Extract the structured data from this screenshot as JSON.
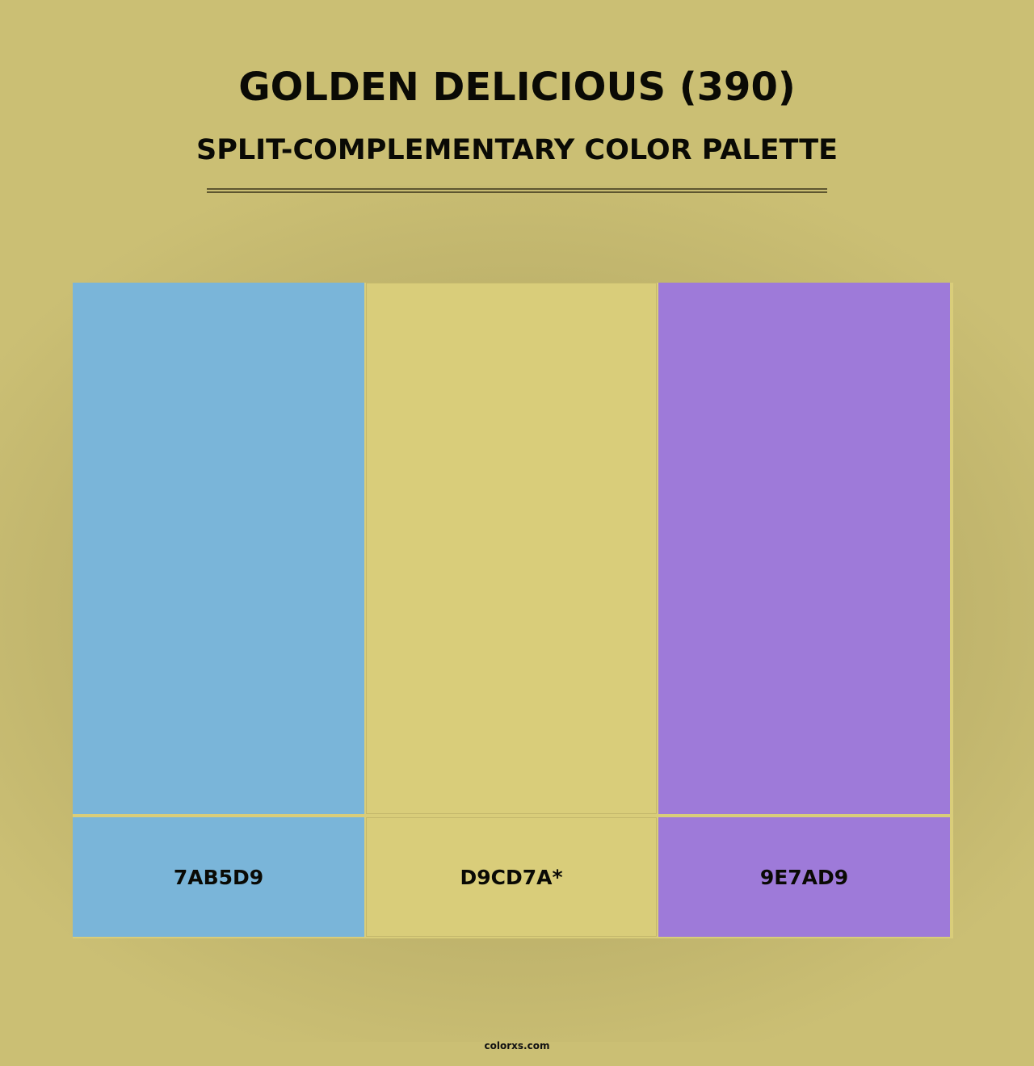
{
  "title": "GOLDEN DELICIOUS (390)",
  "subtitle": "SPLIT-COMPLEMENTARY COLOR PALETTE",
  "background_color": "#cbbf74",
  "swatches": [
    {
      "hex": "7AB5D9",
      "color": "#7ab5d9"
    },
    {
      "hex": "D9CD7A*",
      "color": "#d9cd7a"
    },
    {
      "hex": "9E7AD9",
      "color": "#9e7ad9"
    }
  ],
  "footer": "colorxs.com"
}
